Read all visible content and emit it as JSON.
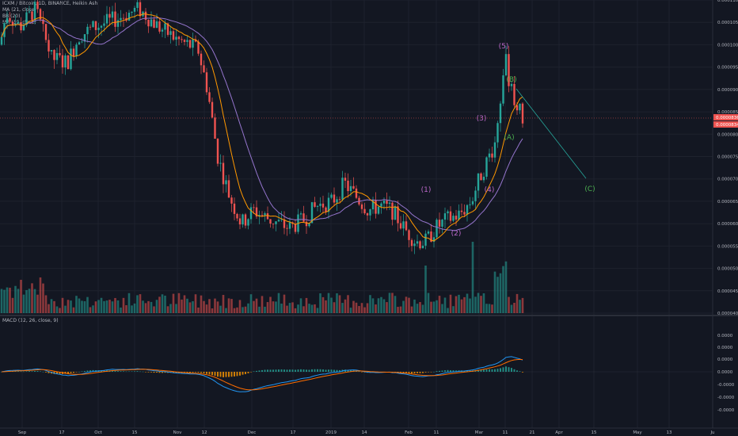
{
  "header": {
    "title": "ICXM / Bitcoin, 1D, BINANCE, Heikin Ashi",
    "indicators": [
      "MA (21, close)",
      "BB (20)",
      "MA (10, close)"
    ]
  },
  "macd_panel": {
    "label": "MACD (12, 26, close, 9)"
  },
  "price_axis": {
    "ticks": [
      "0.0001100",
      "0.0001050",
      "0.0001000",
      "0.0000950",
      "0.0000900",
      "0.0000850",
      "0.0000800",
      "0.0000750",
      "0.0000700",
      "0.0000650",
      "0.0000600",
      "0.0000550",
      "0.0000500",
      "0.0000450",
      "0.0000400"
    ],
    "last_price": "0.0000836",
    "last_price_2": "0.0000834"
  },
  "macd_axis": {
    "ticks": [
      "0.0000",
      "0.0000",
      "0.0000",
      "0.0000",
      "-0.0000",
      "-0.0000",
      "-0.0000"
    ]
  },
  "time_axis": {
    "ticks": [
      "Sep",
      "17",
      "Oct",
      "15",
      "Nov",
      "12",
      "Dec",
      "17",
      "2019",
      "14",
      "Feb",
      "11",
      "Mar",
      "11",
      "21",
      "Apr",
      "15",
      "May",
      "13",
      "Ju"
    ]
  },
  "wave_labels": {
    "w1": "(1)",
    "w2": "(2)",
    "w3": "(3)",
    "w4": "(4)",
    "w5": "(5)",
    "wA": "(A)",
    "wB": "(B)",
    "wC": "(C)"
  },
  "colors": {
    "background": "#131722",
    "up": "#26a69a",
    "down": "#ef5350",
    "ma21": "#9575cd",
    "ma10": "#ff9800",
    "macd": "#2196f3",
    "signal": "#ff6d00",
    "wave_purple": "#ba68c8",
    "wave_green": "#4caf50",
    "projection": "#26a69a"
  },
  "chart_data": {
    "type": "candlestick",
    "description_series": [
      {
        "name": "price",
        "values": [
          0.0001,
          0.0001065,
          0.000104,
          9.9e-05,
          0.000101,
          0.000103,
          0.000105,
          0.000106,
          0.000102,
          9.9e-05,
          9.2e-05,
          8.2e-05,
          7.3e-05,
          6.8e-05,
          6.2e-05,
          5.9e-05,
          6.4e-05,
          6.3e-05,
          6e-05,
          5.9e-05,
          6.1e-05,
          6.3e-05,
          6.4e-05,
          6.5e-05,
          7e-05,
          6.8e-05,
          6.4e-05,
          6.25e-05,
          6.4e-05,
          6e-05,
          5.6e-05,
          5.65e-05,
          5.9e-05,
          6.2e-05,
          6.3e-05,
          6.4e-05,
          6.6e-05,
          7e-05,
          7.8e-05,
          8.7e-05,
          0.0001,
          9e-05,
          8.7e-05,
          8.34e-05
        ]
      }
    ],
    "ylim": [
      4e-05,
      0.00011
    ]
  }
}
